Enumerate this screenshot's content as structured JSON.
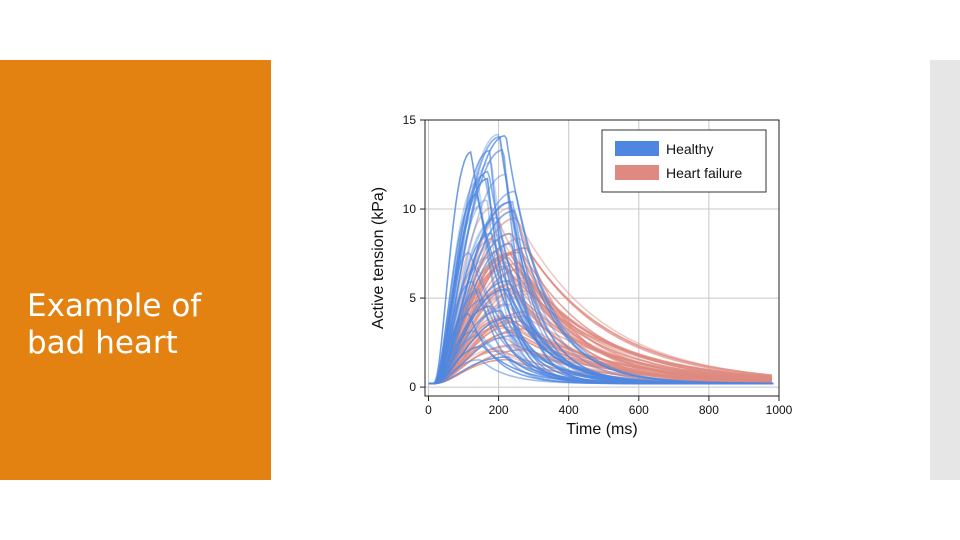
{
  "slide": {
    "title": "Example of bad heart",
    "panel_color": "#e38211"
  },
  "chart_data": {
    "type": "line",
    "title": "",
    "xlabel": "Time (ms)",
    "ylabel": "Active tension (kPa)",
    "xlim": [
      -10,
      1000
    ],
    "ylim": [
      -0.5,
      15
    ],
    "xticks": [
      0,
      200,
      400,
      600,
      800,
      1000
    ],
    "yticks": [
      0,
      5,
      10,
      15
    ],
    "grid": true,
    "legend_position": "top-right",
    "series": [
      {
        "name": "Healthy",
        "color": "#4f87e0",
        "curve_count": 45,
        "peak_range": [
          1.2,
          14.4
        ],
        "peak_time_range_ms": [
          110,
          250
        ],
        "baseline": 0.2
      },
      {
        "name": "Heart failure",
        "color": "#de8a80",
        "curve_count": 55,
        "peak_range": [
          1.0,
          10.3
        ],
        "peak_time_range_ms": [
          180,
          300
        ],
        "baseline": 0.2
      }
    ]
  }
}
